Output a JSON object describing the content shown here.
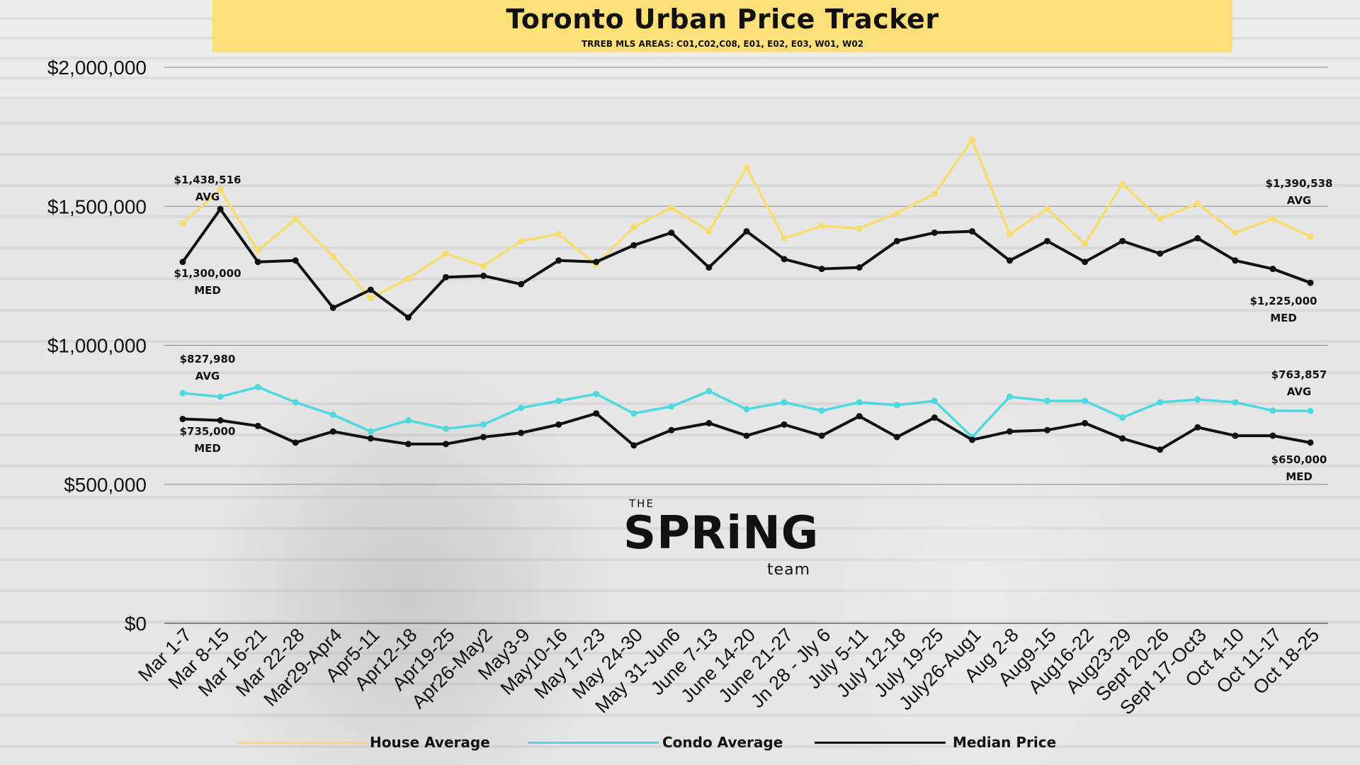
{
  "title": "Toronto Urban Price Tracker",
  "subtitle": "TRREB MLS AREAS: C01,C02,C08, E01, E02, E03, W01, W02",
  "logo": {
    "the": "THE",
    "spring": "SPRiNG",
    "team": "team"
  },
  "legend": [
    {
      "label": "House Average",
      "color": "#f7dc6f"
    },
    {
      "label": "Condo Average",
      "color": "#4dd9df"
    },
    {
      "label": "Median Price",
      "color": "#111111"
    }
  ],
  "annotations": {
    "house_start": {
      "value": "$1,438,516",
      "tag": "AVG"
    },
    "house_end": {
      "value": "$1,390,538",
      "tag": "AVG"
    },
    "upper_median_start": {
      "value": "$1,300,000",
      "tag": "MED"
    },
    "upper_median_end": {
      "value": "$1,225,000",
      "tag": "MED"
    },
    "condo_start": {
      "value": "$827,980",
      "tag": "AVG"
    },
    "condo_end": {
      "value": "$763,857",
      "tag": "AVG"
    },
    "lower_median_start": {
      "value": "$735,000",
      "tag": "MED"
    },
    "lower_median_end": {
      "value": "$650,000",
      "tag": "MED"
    }
  },
  "chart_data": {
    "type": "line",
    "title": "Toronto Urban Price Tracker",
    "subtitle": "TRREB MLS AREAS: C01,C02,C08, E01, E02, E03, W01, W02",
    "xlabel": "",
    "ylabel": "",
    "ylim": [
      0,
      2000000
    ],
    "yticks": [
      0,
      500000,
      1000000,
      1500000,
      2000000
    ],
    "ytick_labels": [
      "$0",
      "$500,000",
      "$1,000,000",
      "$1,500,000",
      "$2,000,000"
    ],
    "grid": true,
    "legend_position": "bottom",
    "categories": [
      "Mar 1-7",
      "Mar 8-15",
      "Mar 16-21",
      "Mar 22-28",
      "Mar29-Apr4",
      "Apr5-11",
      "Apr12-18",
      "Apr19-25",
      "Apr26-May2",
      "May3-9",
      "May10-16",
      "May 17-23",
      "May 24-30",
      "May 31-Jun6",
      "June 7-13",
      "June 14-20",
      "June 21-27",
      "Jn 28 - Jly 6",
      "July 5-11",
      "July 12-18",
      "July 19-25",
      "July26-Aug1",
      "Aug 2-8",
      "Aug9-15",
      "Aug16-22",
      "Aug23-29",
      "Sept 20-26",
      "Sept 17-Oct3",
      "Oct 4-10",
      "Oct 11-17",
      "Oct 18-25"
    ],
    "series": [
      {
        "name": "House Average",
        "color": "#f7dc6f",
        "values": [
          1438516,
          1560000,
          1340000,
          1455000,
          1320000,
          1170000,
          1240000,
          1330000,
          1285000,
          1375000,
          1400000,
          1290000,
          1425000,
          1495000,
          1410000,
          1640000,
          1385000,
          1430000,
          1420000,
          1475000,
          1545000,
          1740000,
          1400000,
          1490000,
          1365000,
          1580000,
          1455000,
          1510000,
          1405000,
          1455000,
          1390538
        ]
      },
      {
        "name": "Condo Average",
        "color": "#4dd9df",
        "values": [
          827980,
          815000,
          850000,
          795000,
          750000,
          690000,
          730000,
          700000,
          715000,
          775000,
          800000,
          825000,
          755000,
          780000,
          835000,
          770000,
          795000,
          765000,
          795000,
          785000,
          800000,
          670000,
          815000,
          800000,
          800000,
          740000,
          795000,
          805000,
          795000,
          765000,
          763857
        ]
      },
      {
        "name": "Median Price",
        "color": "#111111",
        "values": [
          1300000,
          1490000,
          1300000,
          1305000,
          1135000,
          1200000,
          1100000,
          1245000,
          1250000,
          1220000,
          1305000,
          1300000,
          1360000,
          1405000,
          1280000,
          1410000,
          1310000,
          1275000,
          1280000,
          1375000,
          1405000,
          1410000,
          1305000,
          1375000,
          1300000,
          1375000,
          1330000,
          1385000,
          1305000,
          1275000,
          1225000
        ]
      },
      {
        "name": "Median Price",
        "color": "#111111",
        "values": [
          735000,
          730000,
          710000,
          650000,
          690000,
          665000,
          645000,
          645000,
          670000,
          685000,
          715000,
          755000,
          640000,
          695000,
          720000,
          675000,
          715000,
          675000,
          745000,
          670000,
          740000,
          660000,
          690000,
          695000,
          720000,
          665000,
          625000,
          705000,
          675000,
          675000,
          650000
        ]
      }
    ]
  }
}
